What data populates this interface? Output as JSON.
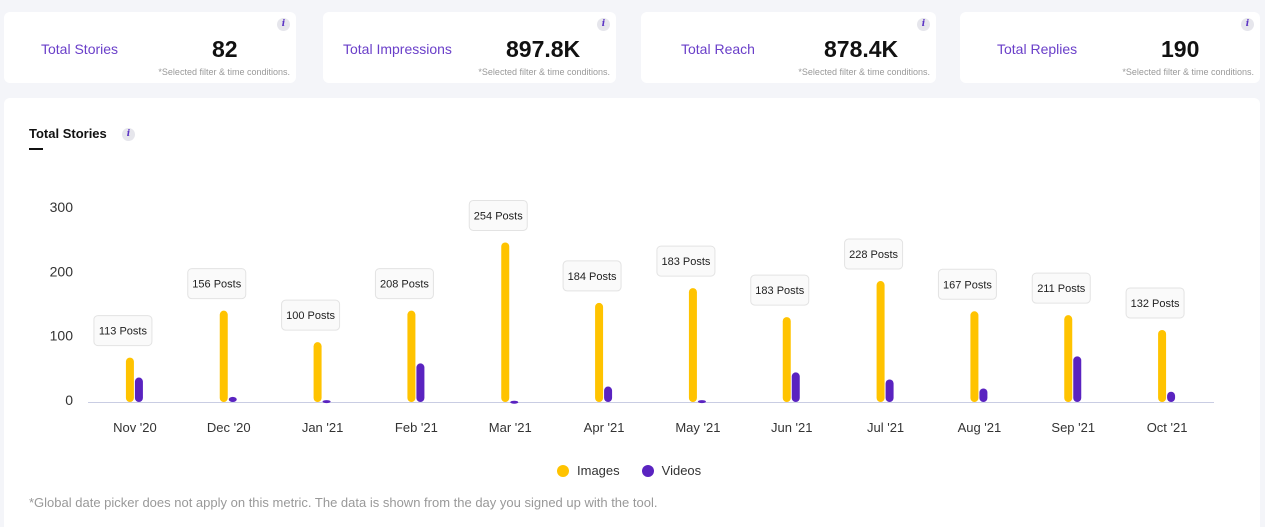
{
  "cards": [
    {
      "label": "Total Stories",
      "value": "82",
      "note": "*Selected filter & time conditions."
    },
    {
      "label": "Total Impressions",
      "value": "897.8K",
      "note": "*Selected filter & time conditions."
    },
    {
      "label": "Total Reach",
      "value": "878.4K",
      "note": "*Selected filter & time conditions."
    },
    {
      "label": "Total Replies",
      "value": "190",
      "note": "*Selected filter & time conditions."
    }
  ],
  "info_icon": "i",
  "panel": {
    "title": "Total Stories",
    "footnote": "*Global date picker does not apply on this metric. The data is shown from the day you signed up with the tool."
  },
  "chart_data": {
    "type": "bar",
    "title": "Total Stories",
    "categories": [
      "Nov '20",
      "Dec '20",
      "Jan '21",
      "Feb '21",
      "Mar '21",
      "Apr '21",
      "May '21",
      "Jun '21",
      "Jul '21",
      "Aug '21",
      "Sep '21",
      "Oct '21"
    ],
    "series": [
      {
        "name": "Images",
        "color": "#ffc300",
        "values": [
          69,
          142,
          93,
          142,
          248,
          154,
          177,
          132,
          188,
          141,
          135,
          112
        ]
      },
      {
        "name": "Videos",
        "color": "#5a23c0",
        "values": [
          38,
          8,
          3,
          60,
          2,
          24,
          3,
          46,
          35,
          21,
          71,
          16
        ]
      }
    ],
    "annotations": [
      "113 Posts",
      "156 Posts",
      "100 Posts",
      "208 Posts",
      "254 Posts",
      "184 Posts",
      "183 Posts",
      "183 Posts",
      "228 Posts",
      "167 Posts",
      "211 Posts",
      "132 Posts"
    ],
    "yticks": [
      0,
      100,
      200,
      300
    ],
    "ylim": [
      0,
      300
    ],
    "grid": false,
    "legend": "bottom"
  }
}
